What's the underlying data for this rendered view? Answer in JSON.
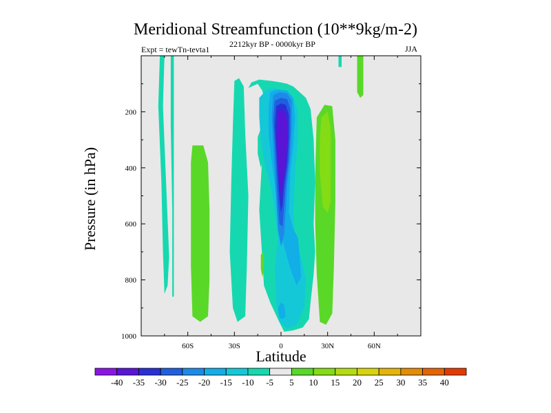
{
  "chart_data": {
    "type": "heatmap",
    "title": "Meridional Streamfunction (10**9kg/m-2)",
    "subtitle": "2212kyr BP - 0000kyr BP",
    "left_label": "Expt = tewTn-tevta1",
    "right_label": "JJA",
    "xlabel": "Latitude",
    "ylabel": "Pressure (in hPa)",
    "xlim": [
      -90,
      90
    ],
    "ylim": [
      1000,
      0
    ],
    "x_ticks": [
      {
        "value": -60,
        "label": "60S"
      },
      {
        "value": -30,
        "label": "30S"
      },
      {
        "value": 0,
        "label": "0"
      },
      {
        "value": 30,
        "label": "30N"
      },
      {
        "value": 60,
        "label": "60N"
      }
    ],
    "y_ticks": [
      {
        "value": 200,
        "label": "200"
      },
      {
        "value": 400,
        "label": "400"
      },
      {
        "value": 600,
        "label": "600"
      },
      {
        "value": 800,
        "label": "800"
      },
      {
        "value": 1000,
        "label": "1000"
      }
    ],
    "colorbar": {
      "bounds": [
        -45,
        -40,
        -35,
        -30,
        -25,
        -20,
        -15,
        -10,
        -5,
        5,
        10,
        15,
        20,
        25,
        30,
        35,
        40,
        45
      ],
      "labels": [
        "-40",
        "-35",
        "-30",
        "-25",
        "-20",
        "-15",
        "-10",
        "-5",
        "5",
        "10",
        "15",
        "20",
        "25",
        "30",
        "35",
        "40"
      ],
      "colors": [
        "#8a16e6",
        "#5a14d6",
        "#2a30d6",
        "#1f5fe0",
        "#1e8ae8",
        "#12aee8",
        "#14c8d8",
        "#16d8b0",
        "#e8e8e8",
        "#5ad828",
        "#84dc14",
        "#b4dc10",
        "#d8d40c",
        "#e4b408",
        "#e48c06",
        "#e46404",
        "#e23a02"
      ]
    },
    "background_color": "#e8e8e8",
    "regions": [
      {
        "value": -7,
        "points": [
          [
            -78,
            0
          ],
          [
            -75,
            0
          ],
          [
            -76,
            180
          ],
          [
            -74,
            450
          ],
          [
            -72,
            720
          ],
          [
            -73,
            820
          ],
          [
            -75,
            850
          ],
          [
            -76,
            700
          ],
          [
            -77,
            450
          ],
          [
            -79,
            180
          ]
        ]
      },
      {
        "value": -7,
        "points": [
          [
            -71,
            0
          ],
          [
            -69,
            0
          ],
          [
            -69,
            250
          ],
          [
            -69,
            550
          ],
          [
            -69,
            860
          ],
          [
            -70,
            860
          ],
          [
            -70,
            550
          ],
          [
            -71,
            250
          ]
        ]
      },
      {
        "value": -7,
        "points": [
          [
            -30,
            90
          ],
          [
            -27,
            80
          ],
          [
            -24,
            110
          ],
          [
            -23,
            280
          ],
          [
            -21,
            500
          ],
          [
            -22,
            750
          ],
          [
            -23,
            930
          ],
          [
            -28,
            950
          ],
          [
            -31,
            900
          ],
          [
            -33,
            700
          ],
          [
            -32,
            450
          ],
          [
            -31,
            250
          ]
        ]
      },
      {
        "value": -7,
        "points": [
          [
            -21,
            115
          ],
          [
            -15,
            100
          ],
          [
            -12,
            125
          ],
          [
            -10,
            180
          ],
          [
            -12,
            350
          ],
          [
            -14,
            550
          ],
          [
            -11,
            820
          ],
          [
            -7,
            880
          ],
          [
            -2,
            940
          ],
          [
            2,
            985
          ],
          [
            8,
            980
          ],
          [
            14,
            970
          ],
          [
            18,
            940
          ],
          [
            19,
            880
          ],
          [
            21,
            780
          ],
          [
            22,
            700
          ],
          [
            21,
            600
          ],
          [
            22,
            450
          ],
          [
            21,
            300
          ],
          [
            19,
            190
          ],
          [
            16,
            150
          ],
          [
            12,
            130
          ],
          [
            8,
            110
          ],
          [
            4,
            100
          ],
          [
            0,
            95
          ],
          [
            -6,
            90
          ],
          [
            -14,
            85
          ],
          [
            -19,
            95
          ]
        ]
      },
      {
        "value": -7,
        "points": [
          [
            -15,
            290
          ],
          [
            -13,
            260
          ],
          [
            -11,
            310
          ],
          [
            -12,
            380
          ],
          [
            -13,
            400
          ],
          [
            -15,
            350
          ]
        ]
      },
      {
        "value": -7,
        "points": [
          [
            37,
            0
          ],
          [
            39,
            0
          ],
          [
            39,
            40
          ],
          [
            37,
            40
          ]
        ]
      },
      {
        "value": -7,
        "points": [
          [
            49,
            0
          ],
          [
            51,
            0
          ],
          [
            51,
            30
          ],
          [
            49,
            30
          ]
        ]
      },
      {
        "value": 7,
        "points": [
          [
            -57,
            320
          ],
          [
            -50,
            320
          ],
          [
            -47,
            380
          ],
          [
            -46,
            550
          ],
          [
            -46,
            800
          ],
          [
            -47,
            930
          ],
          [
            -52,
            950
          ],
          [
            -57,
            930
          ],
          [
            -58,
            750
          ],
          [
            -58,
            550
          ],
          [
            -58,
            380
          ]
        ]
      },
      {
        "value": 7,
        "points": [
          [
            -13,
            710
          ],
          [
            -11,
            700
          ],
          [
            -11,
            760
          ],
          [
            -12,
            790
          ],
          [
            -13,
            760
          ]
        ]
      },
      {
        "value": 7,
        "points": [
          [
            23,
            220
          ],
          [
            28,
            175
          ],
          [
            33,
            180
          ],
          [
            35,
            300
          ],
          [
            35,
            520
          ],
          [
            34,
            760
          ],
          [
            33,
            920
          ],
          [
            29,
            960
          ],
          [
            25,
            950
          ],
          [
            23,
            780
          ],
          [
            22,
            600
          ],
          [
            22,
            420
          ]
        ]
      },
      {
        "value": 7,
        "points": [
          [
            49,
            0
          ],
          [
            53,
            0
          ],
          [
            53,
            80
          ],
          [
            53,
            140
          ],
          [
            51,
            150
          ],
          [
            49,
            130
          ],
          [
            49,
            70
          ]
        ]
      },
      {
        "value": 12,
        "points": [
          [
            26,
            220
          ],
          [
            30,
            200
          ],
          [
            32,
            260
          ],
          [
            32,
            380
          ],
          [
            32,
            520
          ],
          [
            30,
            560
          ],
          [
            27,
            540
          ],
          [
            25,
            420
          ],
          [
            25,
            300
          ]
        ]
      },
      {
        "value": -12,
        "points": [
          [
            -14,
            150
          ],
          [
            -9,
            120
          ],
          [
            -4,
            115
          ],
          [
            2,
            130
          ],
          [
            8,
            150
          ],
          [
            11,
            200
          ],
          [
            11,
            300
          ],
          [
            9,
            420
          ],
          [
            8,
            560
          ],
          [
            9,
            650
          ],
          [
            13,
            720
          ],
          [
            16,
            800
          ],
          [
            15,
            900
          ],
          [
            10,
            960
          ],
          [
            4,
            975
          ],
          [
            -1,
            950
          ],
          [
            -3,
            880
          ],
          [
            -4,
            760
          ],
          [
            -2,
            650
          ],
          [
            -4,
            560
          ],
          [
            -6,
            480
          ],
          [
            -10,
            400
          ],
          [
            -13,
            300
          ],
          [
            -14,
            220
          ]
        ]
      },
      {
        "value": -12,
        "points": [
          [
            -7,
            300
          ],
          [
            -5,
            290
          ],
          [
            -4,
            330
          ],
          [
            -5,
            360
          ],
          [
            -7,
            340
          ]
        ]
      },
      {
        "value": -17,
        "points": [
          [
            -7,
            130
          ],
          [
            -2,
            120
          ],
          [
            4,
            125
          ],
          [
            8,
            150
          ],
          [
            9,
            220
          ],
          [
            8,
            320
          ],
          [
            6,
            420
          ],
          [
            5,
            560
          ],
          [
            8,
            620
          ],
          [
            11,
            650
          ],
          [
            12,
            720
          ],
          [
            13,
            790
          ],
          [
            10,
            820
          ],
          [
            6,
            760
          ],
          [
            3,
            700
          ],
          [
            0,
            640
          ],
          [
            -2,
            560
          ],
          [
            -4,
            460
          ],
          [
            -6,
            380
          ],
          [
            -8,
            280
          ],
          [
            -8,
            190
          ]
        ]
      },
      {
        "value": -17,
        "points": [
          [
            -2,
            900
          ],
          [
            0,
            880
          ],
          [
            2,
            890
          ],
          [
            3,
            930
          ],
          [
            1,
            940
          ],
          [
            -1,
            935
          ]
        ]
      },
      {
        "value": -22,
        "points": [
          [
            -5,
            140
          ],
          [
            -1,
            130
          ],
          [
            4,
            135
          ],
          [
            7,
            160
          ],
          [
            7,
            250
          ],
          [
            6,
            360
          ],
          [
            4,
            460
          ],
          [
            3,
            560
          ],
          [
            2,
            640
          ],
          [
            0,
            680
          ],
          [
            -2,
            620
          ],
          [
            -3,
            520
          ],
          [
            -4,
            420
          ],
          [
            -5,
            320
          ],
          [
            -6,
            220
          ]
        ]
      },
      {
        "value": -27,
        "points": [
          [
            -4,
            160
          ],
          [
            0,
            150
          ],
          [
            4,
            155
          ],
          [
            6,
            190
          ],
          [
            6,
            270
          ],
          [
            5,
            370
          ],
          [
            3,
            460
          ],
          [
            2,
            540
          ],
          [
            1,
            610
          ],
          [
            -1,
            600
          ],
          [
            -2,
            520
          ],
          [
            -3,
            420
          ],
          [
            -4,
            320
          ],
          [
            -5,
            230
          ]
        ]
      },
      {
        "value": -32,
        "points": [
          [
            -3,
            180
          ],
          [
            0,
            170
          ],
          [
            3,
            175
          ],
          [
            5,
            210
          ],
          [
            5,
            290
          ],
          [
            4,
            380
          ],
          [
            2,
            460
          ],
          [
            1,
            530
          ],
          [
            0,
            560
          ],
          [
            -1,
            510
          ],
          [
            -2,
            430
          ],
          [
            -3,
            340
          ],
          [
            -4,
            250
          ]
        ]
      },
      {
        "value": -37,
        "points": [
          [
            -2,
            200
          ],
          [
            0,
            190
          ],
          [
            2,
            195
          ],
          [
            4,
            230
          ],
          [
            4,
            310
          ],
          [
            3,
            390
          ],
          [
            1,
            460
          ],
          [
            0,
            510
          ],
          [
            -1,
            460
          ],
          [
            -2,
            380
          ],
          [
            -3,
            290
          ]
        ]
      }
    ]
  }
}
